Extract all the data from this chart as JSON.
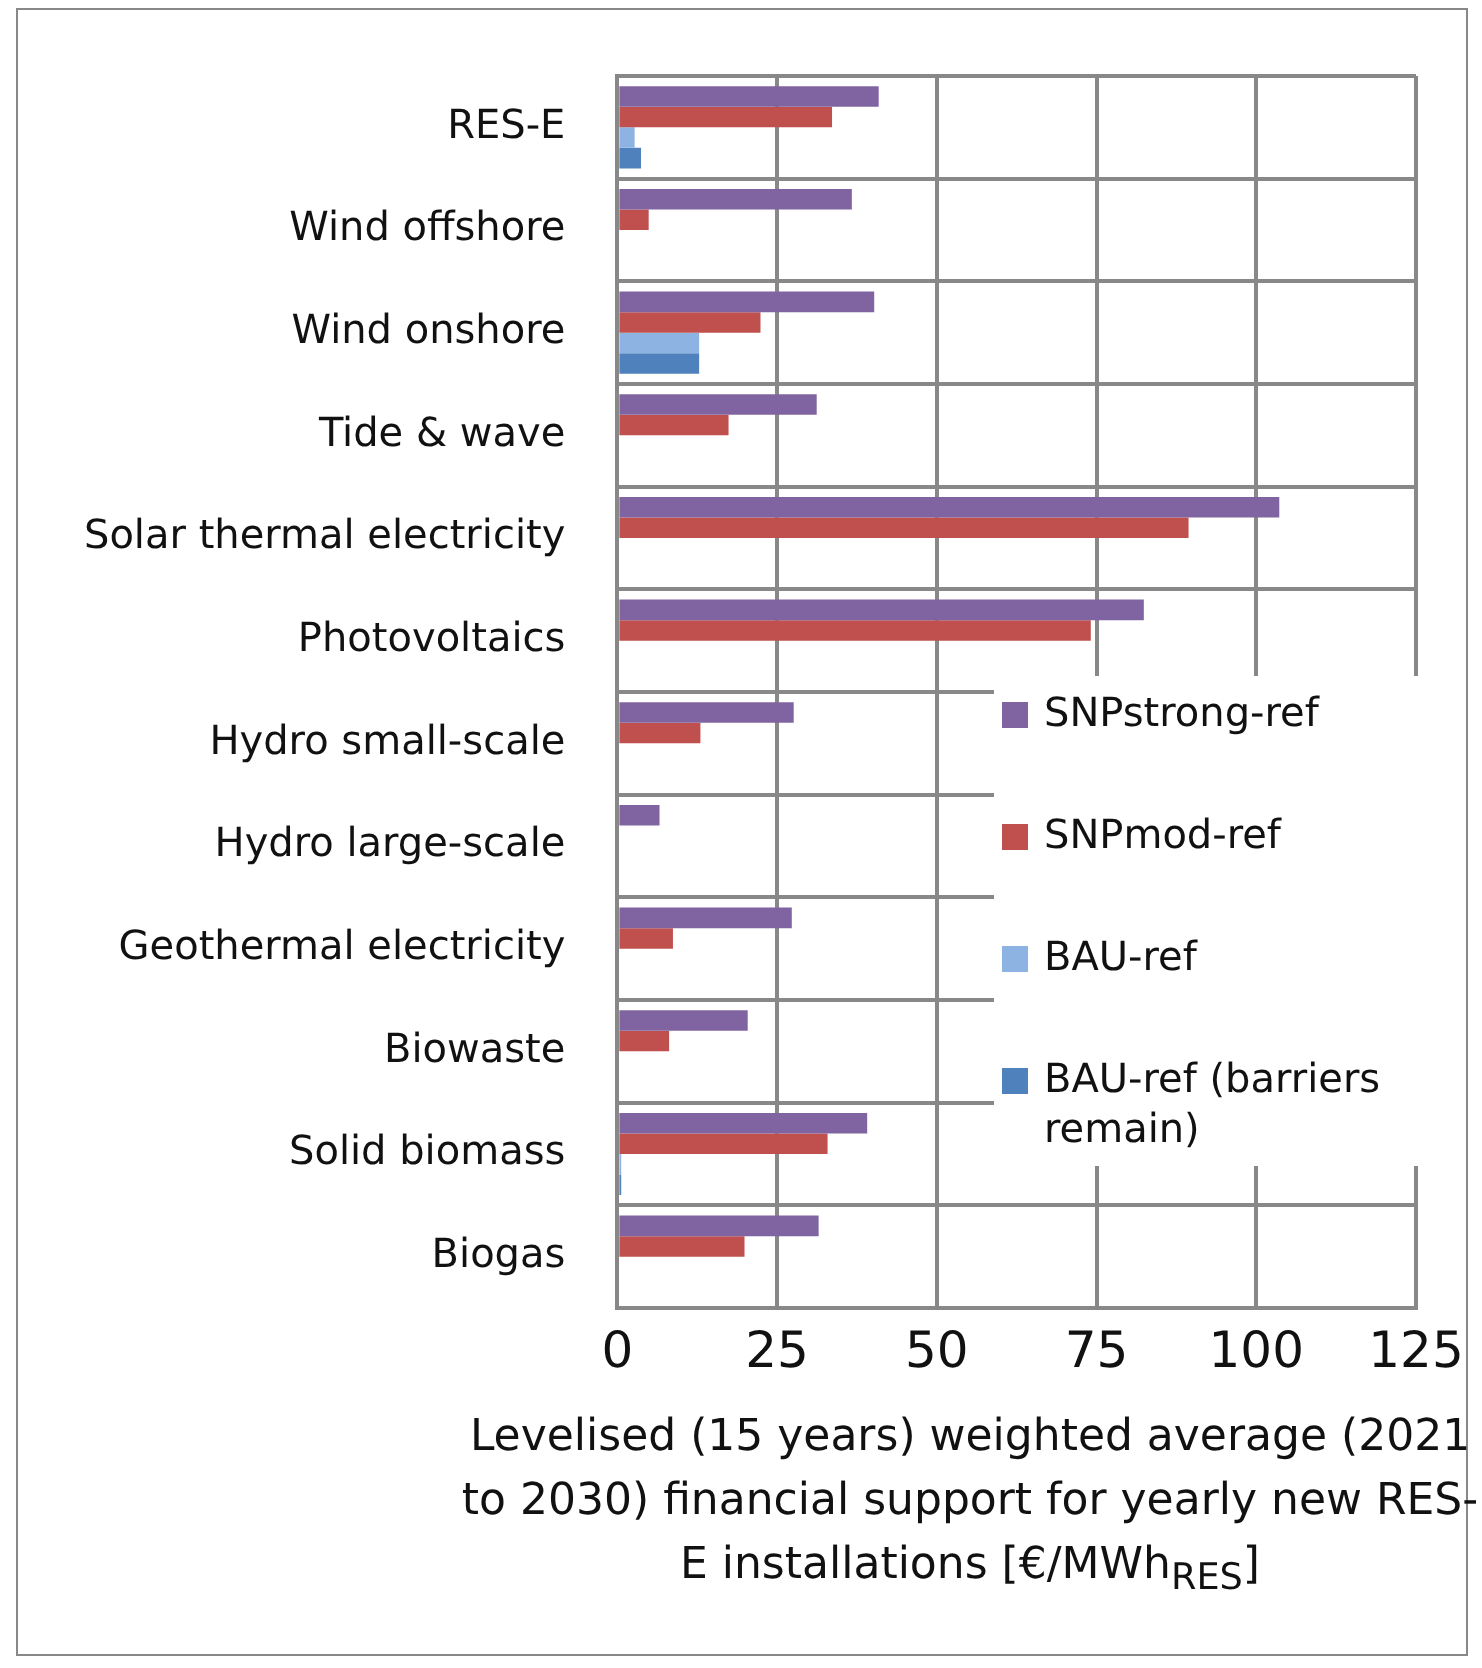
{
  "chart_data": {
    "type": "bar",
    "orientation": "horizontal",
    "xlabel": "Levelised (15 years) weighted average (2021 to 2030) financial support for yearly new RES-E installations [€/MWh$_{RES}$]",
    "categories": [
      "RES-E",
      "Wind offshore",
      "Wind onshore",
      "Tide & wave",
      "Solar thermal electricity",
      "Photovoltaics",
      "Hydro small-scale",
      "Hydro large-scale",
      "Geothermal electricity",
      "Biowaste",
      "Solid biomass",
      "Biogas"
    ],
    "series": [
      {
        "name": "SNPstrong-ref",
        "color": "#8064a2",
        "values": [
          40.9,
          36.7,
          40.2,
          31.2,
          103.6,
          82.4,
          27.6,
          6.6,
          27.3,
          20.4,
          39.1,
          31.5
        ]
      },
      {
        "name": "SNPmod-ref",
        "color": "#c0504d",
        "values": [
          33.6,
          4.9,
          22.4,
          17.4,
          89.4,
          74.1,
          13.0,
          null,
          8.7,
          8.1,
          32.9,
          19.9
        ]
      },
      {
        "name": "BAU-ref",
        "color": "#8db3e2",
        "values": [
          2.7,
          null,
          12.8,
          null,
          null,
          null,
          null,
          null,
          null,
          null,
          0.6,
          null
        ]
      },
      {
        "name": "BAU-ref (barriers remain)",
        "color": "#4f81bd",
        "values": [
          3.7,
          null,
          12.8,
          null,
          null,
          null,
          null,
          null,
          null,
          null,
          0.6,
          null
        ]
      }
    ],
    "xlim": [
      0,
      125
    ],
    "xticks": [
      0,
      25,
      50,
      75,
      100,
      125
    ],
    "grid": true,
    "legend": "right"
  }
}
